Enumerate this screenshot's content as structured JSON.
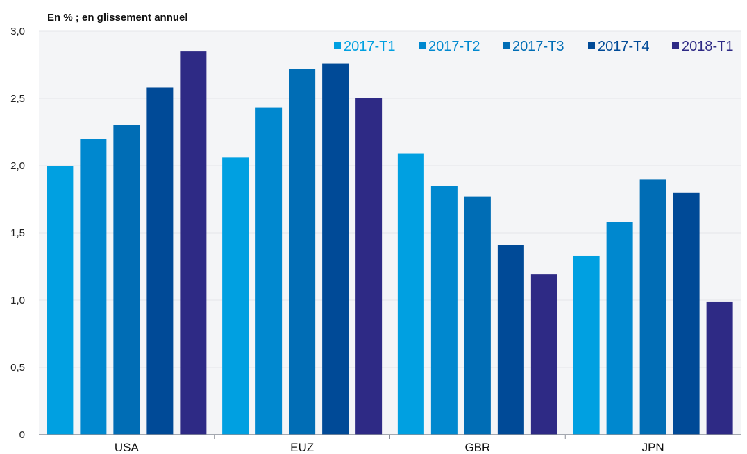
{
  "chart_data": {
    "type": "bar",
    "unit_label": "En % ; en glissement annuel",
    "categories": [
      "USA",
      "EUZ",
      "GBR",
      "JPN"
    ],
    "series": [
      {
        "name": "2017-T1",
        "color": "#00a0e1",
        "values": [
          2.0,
          2.06,
          2.09,
          1.33
        ]
      },
      {
        "name": "2017-T2",
        "color": "#0088cf",
        "values": [
          2.2,
          2.43,
          1.85,
          1.58
        ]
      },
      {
        "name": "2017-T3",
        "color": "#006db5",
        "values": [
          2.3,
          2.72,
          1.77,
          1.9
        ]
      },
      {
        "name": "2017-T4",
        "color": "#004a97",
        "values": [
          2.58,
          2.76,
          1.41,
          1.8
        ]
      },
      {
        "name": "2018-T1",
        "color": "#2e2a85",
        "values": [
          2.85,
          2.5,
          1.19,
          0.99
        ]
      }
    ],
    "ylim": [
      0,
      3.0
    ],
    "yticks": [
      "0",
      "0,5",
      "1,0",
      "1,5",
      "2,0",
      "2,5",
      "3,0"
    ],
    "grid": true,
    "legend_position": "top-right"
  }
}
